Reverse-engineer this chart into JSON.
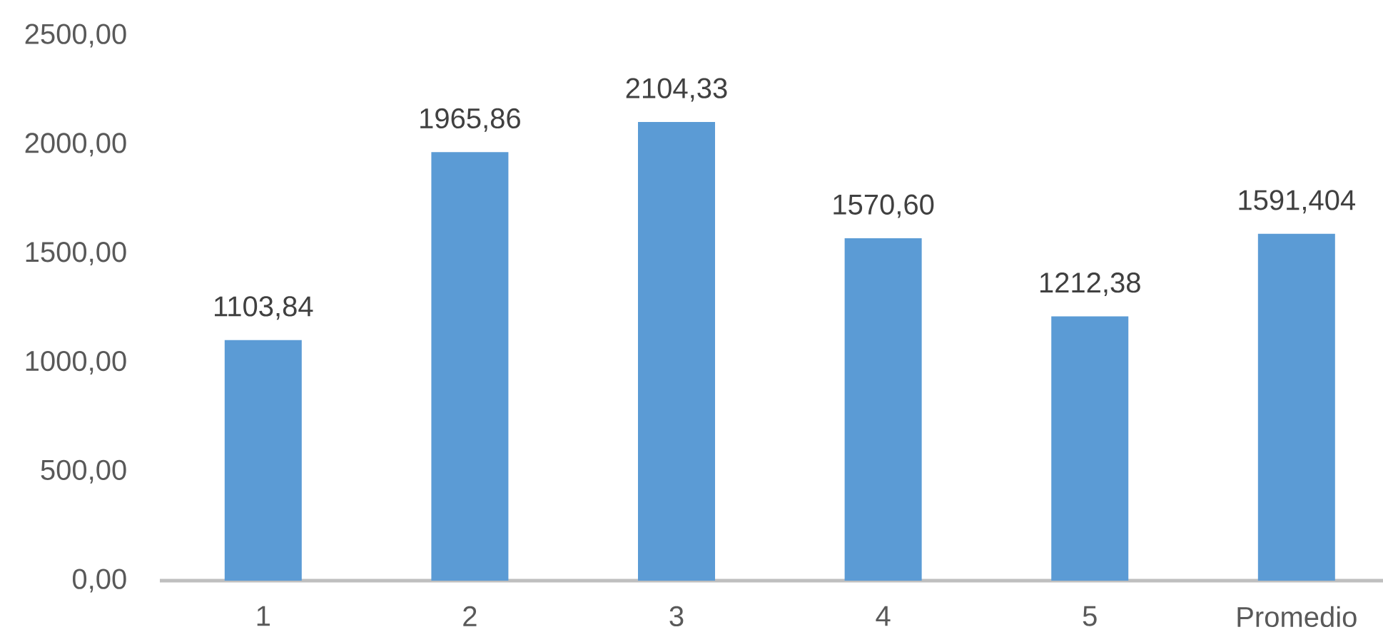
{
  "chart_data": {
    "type": "bar",
    "categories": [
      "1",
      "2",
      "3",
      "4",
      "5",
      "Promedio"
    ],
    "values": [
      1103.84,
      1965.86,
      2104.33,
      1570.6,
      1212.38,
      1591.404
    ],
    "value_labels": [
      "1103,84",
      "1965,86",
      "2104,33",
      "1570,60",
      "1212,38",
      "1591,404"
    ],
    "color": "#5b9bd5",
    "ylim": [
      0,
      2500
    ],
    "yticks": [
      {
        "value": 0,
        "label": "0,00"
      },
      {
        "value": 500,
        "label": "500,00"
      },
      {
        "value": 1000,
        "label": "1000,00"
      },
      {
        "value": 1500,
        "label": "1500,00"
      },
      {
        "value": 2000,
        "label": "2000,00"
      },
      {
        "value": 2500,
        "label": "2500,00"
      }
    ]
  }
}
